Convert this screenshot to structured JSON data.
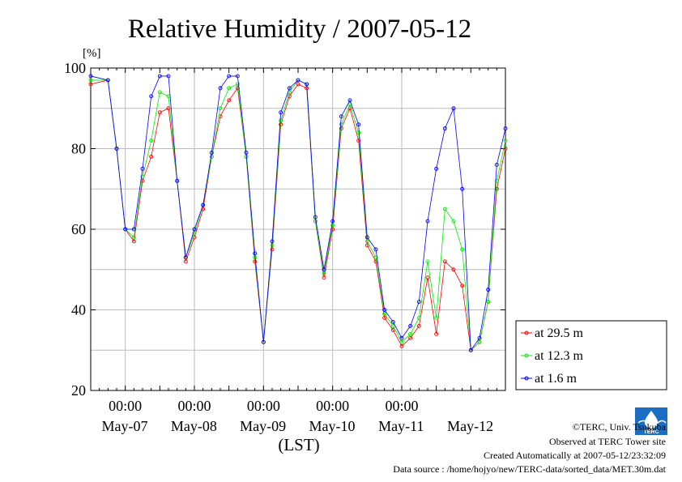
{
  "chart_data": {
    "type": "line",
    "title": "Relative Humidity / 2007-05-12",
    "ylabel": "[%]",
    "xlabel": "(LST)",
    "ylim": [
      20,
      100
    ],
    "yticks": [
      20,
      40,
      60,
      80,
      100
    ],
    "xlim_hours": [
      0,
      144
    ],
    "grid": true,
    "legend_position": "bottom-right",
    "x_time_labels": [
      "00:00",
      "00:00",
      "00:00",
      "00:00",
      "00:00"
    ],
    "x_date_labels": [
      "May-07",
      "May-08",
      "May-09",
      "May-10",
      "May-11",
      "May-12"
    ],
    "x_unit": "hours since 2007-05-06 12:00 LST",
    "x": [
      0,
      6,
      9,
      12,
      15,
      18,
      21,
      24,
      27,
      30,
      33,
      36,
      39,
      42,
      45,
      48,
      51,
      54,
      57,
      60,
      63,
      66,
      69,
      72,
      75,
      78,
      81,
      84,
      87,
      90,
      93,
      96,
      99,
      102,
      105,
      108,
      111,
      114,
      117,
      120,
      123,
      126,
      129,
      132,
      135,
      138,
      141,
      144
    ],
    "series": [
      {
        "name": "at 29.5 m",
        "color": "#ff0000",
        "values": [
          96,
          97,
          80,
          60,
          57,
          72,
          78,
          89,
          90,
          72,
          52,
          58,
          65,
          78,
          88,
          92,
          95,
          78,
          52,
          32,
          55,
          86,
          93,
          96,
          95,
          62,
          48,
          60,
          85,
          90,
          82,
          56,
          52,
          38,
          35,
          31,
          33,
          36,
          48,
          34,
          52,
          50,
          46,
          30,
          32,
          42,
          70,
          80
        ]
      },
      {
        "name": "at 12.3 m",
        "color": "#00ee00",
        "values": [
          97,
          97,
          80,
          60,
          58,
          73,
          82,
          94,
          93,
          72,
          53,
          59,
          66,
          78,
          90,
          95,
          96,
          78,
          53,
          32,
          56,
          87,
          94,
          97,
          96,
          62,
          49,
          61,
          86,
          91,
          84,
          57,
          53,
          39,
          36,
          32,
          34,
          38,
          52,
          38,
          65,
          62,
          55,
          30,
          32,
          42,
          72,
          82
        ]
      },
      {
        "name": "at 1.6 m",
        "color": "#0000ff",
        "values": [
          98,
          97,
          80,
          60,
          60,
          75,
          93,
          98,
          98,
          72,
          53,
          60,
          66,
          79,
          95,
          98,
          98,
          79,
          54,
          32,
          57,
          89,
          95,
          97,
          96,
          63,
          50,
          62,
          88,
          92,
          86,
          58,
          55,
          40,
          37,
          33,
          36,
          42,
          62,
          75,
          85,
          90,
          70,
          30,
          33,
          45,
          76,
          85
        ]
      }
    ]
  },
  "credits": {
    "copyright": "©TERC, Univ. Tsukuba",
    "observed": "Observed at TERC Tower site",
    "created": "Created Automatically at 2007-05-12/23:32:09",
    "source": "Data source : /home/hojyo/new/TERC-data/sorted_data/MET.30m.dat"
  },
  "logo_text": "TERC",
  "colors": {
    "grid": "#bbbbbb",
    "axis": "#000000",
    "background": "#ffffff"
  }
}
